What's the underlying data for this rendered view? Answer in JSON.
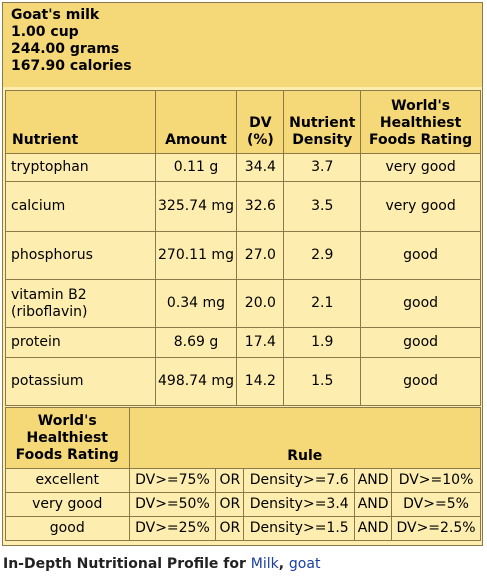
{
  "header": {
    "food": "Goat's milk",
    "serving": "1.00 cup",
    "grams": "244.00 grams",
    "calories": "167.90 calories"
  },
  "nutrient_table": {
    "columns": [
      "Nutrient",
      "Amount",
      "DV (%)",
      "Nutrient Density",
      "World's Healthiest Foods Rating"
    ],
    "col_dv_line1": "DV",
    "col_dv_line2": "(%)",
    "col_density_line1": "Nutrient",
    "col_density_line2": "Density",
    "col_rating_line1": "World's",
    "col_rating_line2": "Healthiest",
    "col_rating_line3": "Foods Rating",
    "rows": [
      {
        "nutrient": "tryptophan",
        "amount": "0.11 g",
        "dv": "34.4",
        "density": "3.7",
        "rating": "very good"
      },
      {
        "nutrient": "calcium",
        "amount": "325.74 mg",
        "dv": "32.6",
        "density": "3.5",
        "rating": "very good"
      },
      {
        "nutrient": "phosphorus",
        "amount": "270.11 mg",
        "dv": "27.0",
        "density": "2.9",
        "rating": "good"
      },
      {
        "nutrient": "vitamin B2 (riboflavin)",
        "amount": "0.34 mg",
        "dv": "20.0",
        "density": "2.1",
        "rating": "good"
      },
      {
        "nutrient": "protein",
        "amount": "8.69 g",
        "dv": "17.4",
        "density": "1.9",
        "rating": "good"
      },
      {
        "nutrient": "potassium",
        "amount": "498.74 mg",
        "dv": "14.2",
        "density": "1.5",
        "rating": "good"
      }
    ]
  },
  "rule_table": {
    "col_rating_line1": "World's",
    "col_rating_line2": "Healthiest",
    "col_rating_line3": "Foods Rating",
    "col_rule": "Rule",
    "rows": [
      {
        "rating": "excellent",
        "dv": "DV>=75%",
        "or": "OR",
        "density": "Density>=7.6",
        "and": "AND",
        "dv2": "DV>=10%"
      },
      {
        "rating": "very good",
        "dv": "DV>=50%",
        "or": "OR",
        "density": "Density>=3.4",
        "and": "AND",
        "dv2": "DV>=5%"
      },
      {
        "rating": "good",
        "dv": "DV>=25%",
        "or": "OR",
        "density": "Density>=1.5",
        "and": "AND",
        "dv2": "DV>=2.5%"
      }
    ]
  },
  "footer": {
    "text": "In-Depth Nutritional Profile for",
    "link1": "Milk",
    "link2": "goat"
  }
}
